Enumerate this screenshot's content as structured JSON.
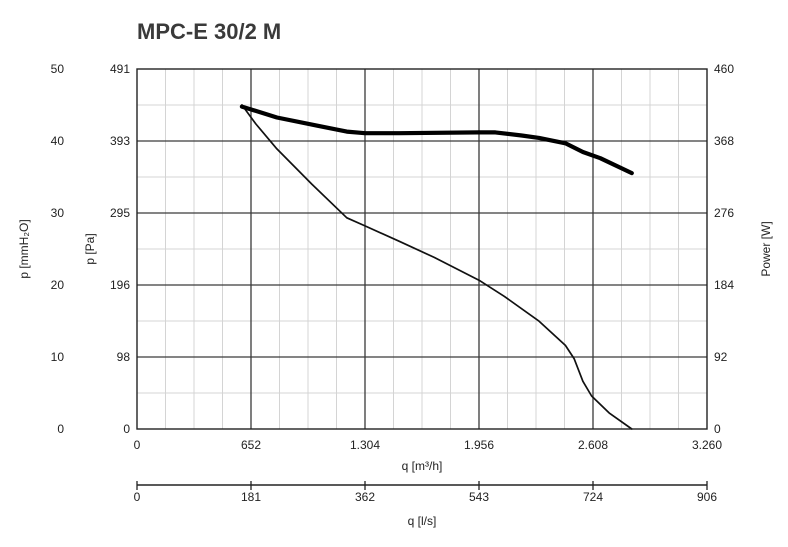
{
  "chart_data": {
    "type": "line",
    "title": "MPC-E 30/2 M",
    "x_axis": {
      "label": "q [m³/h]",
      "ticks": [
        "0",
        "652",
        "1.304",
        "1.956",
        "2.608",
        "3.260"
      ],
      "range": [
        0,
        3260
      ]
    },
    "x2_axis": {
      "label": "q [l/s]",
      "ticks": [
        "0",
        "181",
        "362",
        "543",
        "724",
        "906"
      ],
      "range": [
        0,
        906
      ]
    },
    "y_left_outer": {
      "label": "p [mmH₂O]",
      "ticks": [
        "0",
        "10",
        "20",
        "30",
        "40",
        "50"
      ],
      "range": [
        0,
        50
      ]
    },
    "y_left_inner": {
      "label": "p [Pa]",
      "ticks": [
        "0",
        "98",
        "196",
        "295",
        "393",
        "491"
      ],
      "range": [
        0,
        491
      ]
    },
    "y_right": {
      "label": "Power [W]",
      "ticks": [
        "0",
        "92",
        "184",
        "276",
        "368",
        "460"
      ],
      "range": [
        0,
        460
      ]
    },
    "grid": true,
    "series": [
      {
        "axis": "pressure_pa",
        "color": "#111111",
        "points": [
          [
            600,
            442
          ],
          [
            680,
            416
          ],
          [
            800,
            382
          ],
          [
            1000,
            334
          ],
          [
            1200,
            288
          ],
          [
            1304,
            277
          ],
          [
            1500,
            256
          ],
          [
            1700,
            234
          ],
          [
            1956,
            203
          ],
          [
            2100,
            181
          ],
          [
            2300,
            147
          ],
          [
            2450,
            114
          ],
          [
            2500,
            96
          ],
          [
            2550,
            65
          ],
          [
            2600,
            45
          ],
          [
            2700,
            22
          ],
          [
            2830,
            0
          ]
        ]
      },
      {
        "axis": "power_w",
        "color": "#000000",
        "points": [
          [
            600,
            412
          ],
          [
            700,
            405
          ],
          [
            800,
            398
          ],
          [
            1000,
            389
          ],
          [
            1200,
            380
          ],
          [
            1304,
            378
          ],
          [
            1500,
            378
          ],
          [
            1956,
            379
          ],
          [
            2050,
            379
          ],
          [
            2200,
            375
          ],
          [
            2300,
            372
          ],
          [
            2450,
            365
          ],
          [
            2550,
            354
          ],
          [
            2650,
            346
          ],
          [
            2830,
            327
          ]
        ]
      }
    ]
  }
}
